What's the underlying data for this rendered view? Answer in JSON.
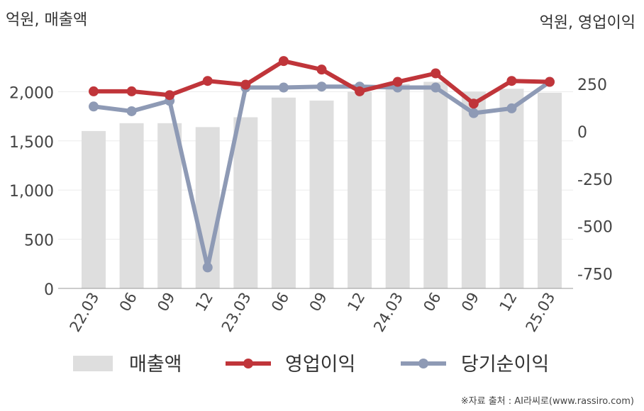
{
  "chart_data": {
    "type": "bar+line",
    "left_axis_unit": "억원, 매출액",
    "right_axis_unit": "억원, 영업이익",
    "categories": [
      "22.03",
      "06",
      "09",
      "12",
      "23.03",
      "06",
      "09",
      "12",
      "24.03",
      "06",
      "09",
      "12",
      "25.03"
    ],
    "left_ylim": [
      0,
      2500
    ],
    "left_ticks": [
      0,
      500,
      1000,
      1500,
      2000
    ],
    "left_tick_labels": [
      "0",
      "500",
      "1,000",
      "1,500",
      "2,000"
    ],
    "right_ylim": [
      -850,
      400
    ],
    "right_ticks": [
      250,
      0,
      -250,
      -500,
      -750
    ],
    "right_tick_labels": [
      "250",
      "0",
      "-250",
      "-500",
      "-750"
    ],
    "series": [
      {
        "name": "매출액",
        "kind": "bar",
        "axis": "left",
        "color": "#dedede",
        "values": [
          1600,
          1680,
          1680,
          1640,
          1740,
          1940,
          1910,
          2000,
          2080,
          2100,
          2000,
          2030,
          1990
        ]
      },
      {
        "name": "영업이익",
        "kind": "line",
        "axis": "right",
        "color": "#c0353a",
        "values": [
          210,
          210,
          190,
          265,
          245,
          370,
          325,
          210,
          260,
          305,
          145,
          265,
          260
        ]
      },
      {
        "name": "당기순이익",
        "kind": "line",
        "axis": "right",
        "color": "#8e9ab5",
        "values": [
          130,
          105,
          160,
          -720,
          230,
          230,
          235,
          235,
          230,
          230,
          95,
          120,
          260
        ]
      }
    ],
    "legend_placement": "bottom",
    "grid": "horizontal"
  },
  "source_text": "※자료 출처 : AI라씨로(www.rassiro.com)"
}
